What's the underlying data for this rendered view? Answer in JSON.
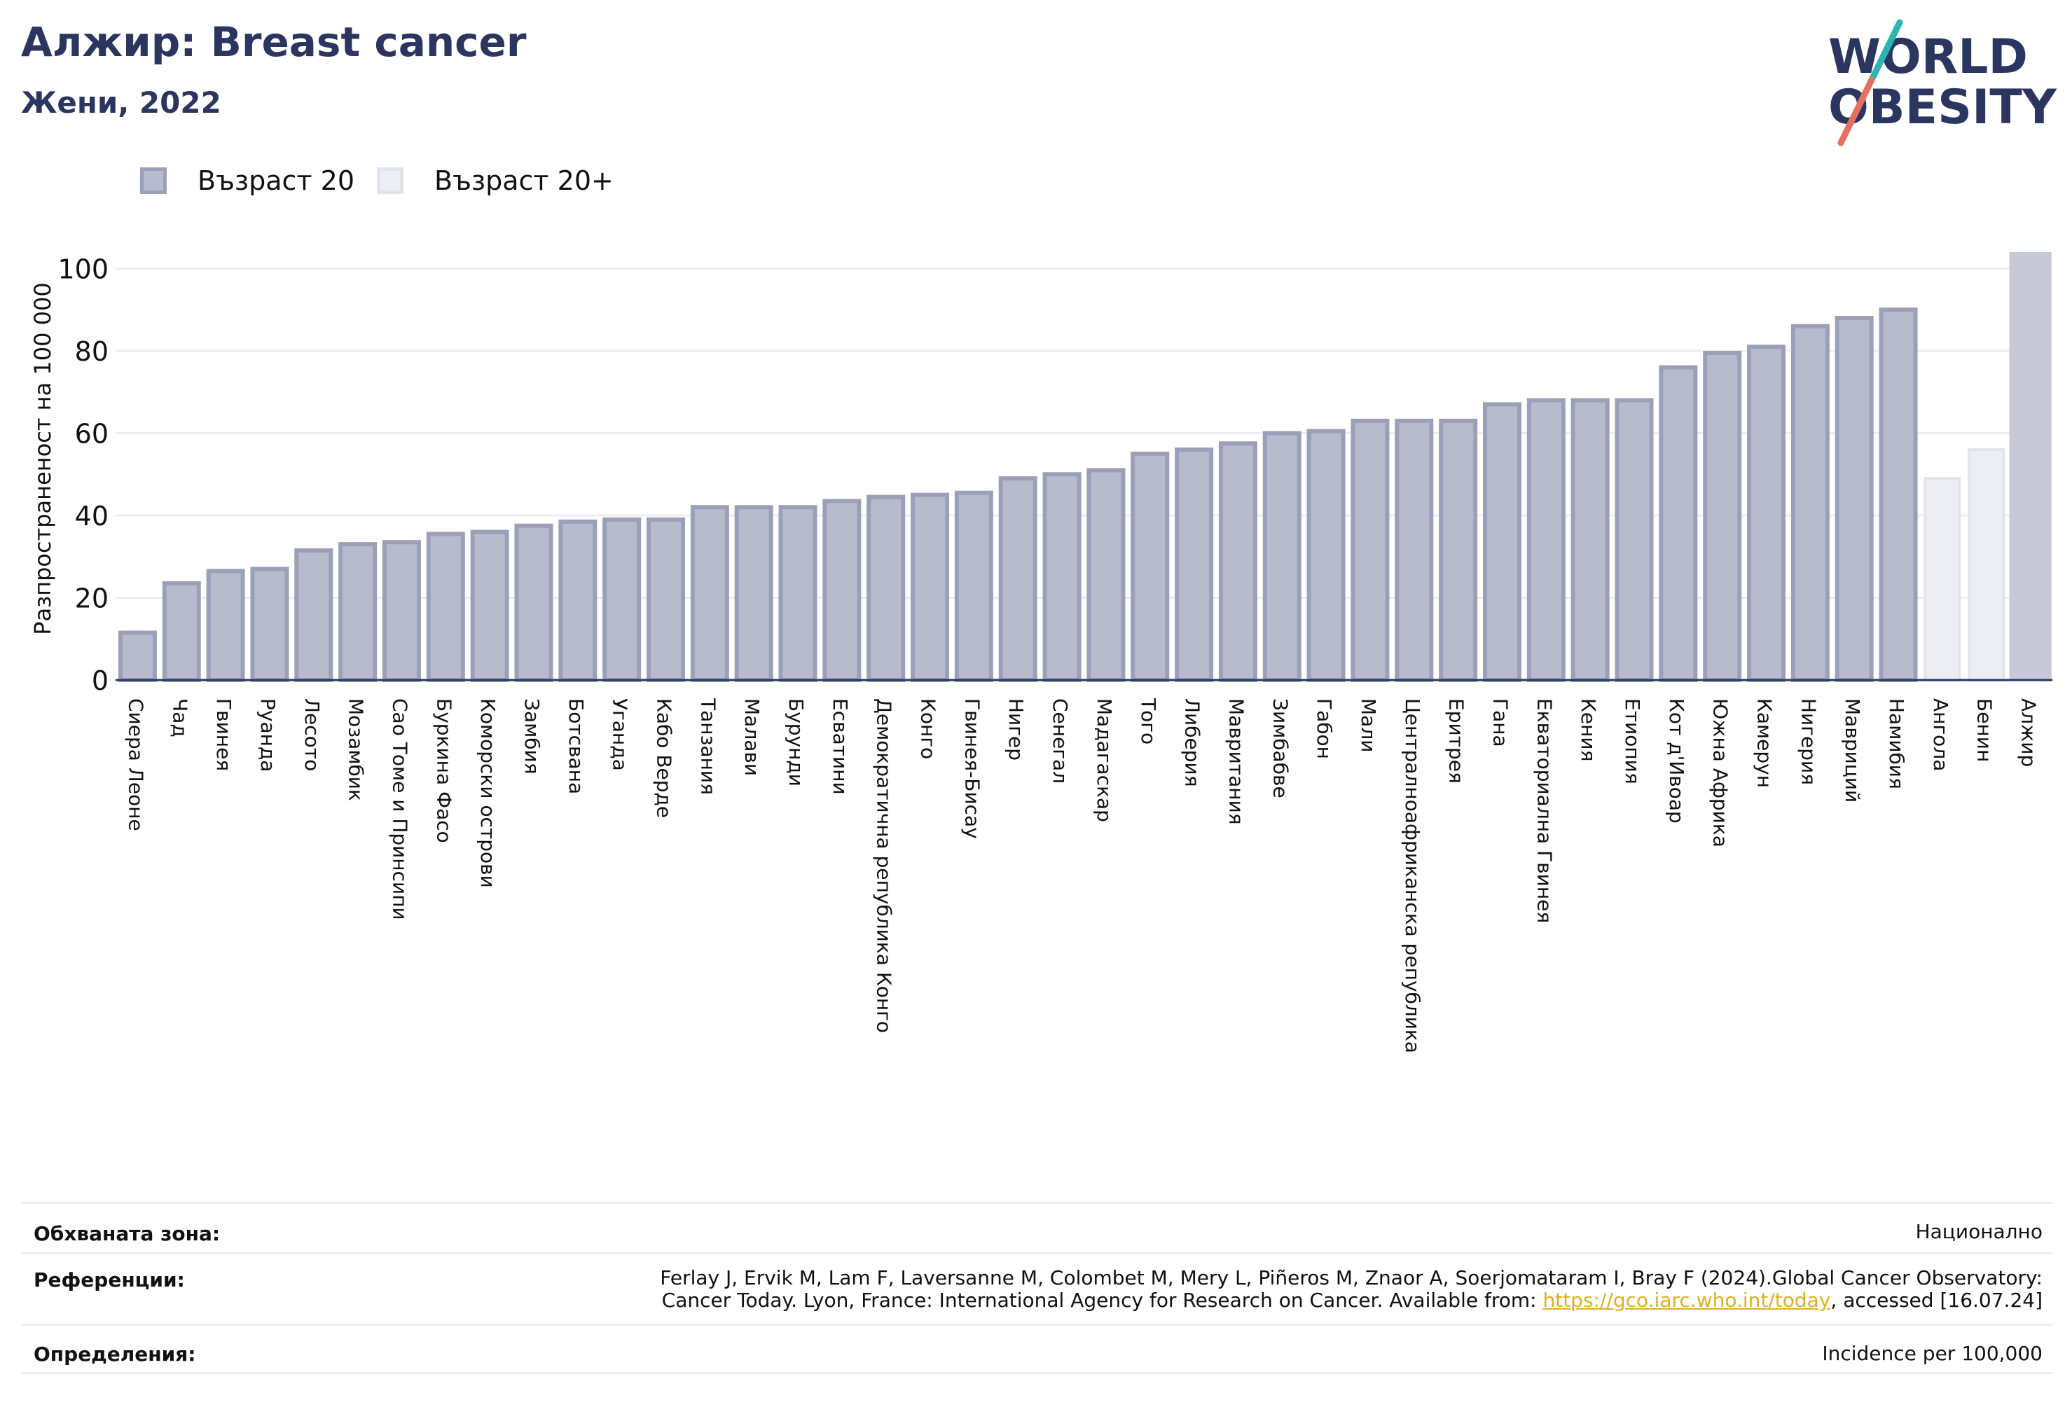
{
  "header": {
    "title": "Алжир: Breast cancer",
    "subtitle": "Жени, 2022"
  },
  "logo": {
    "line1": "WORLD",
    "line2": "OBESITY"
  },
  "legend": [
    {
      "label": "Възраст 20",
      "color": "#b7bbcb"
    },
    {
      "label": "Възраст 20+",
      "color": "#eceef3"
    }
  ],
  "chart_data": {
    "type": "bar",
    "ylabel": "Разпространеност  на 100 000",
    "ylim": [
      0,
      100
    ],
    "yticks": [
      0,
      20,
      40,
      60,
      80,
      100
    ],
    "grid": true,
    "legend_position": "top-left",
    "categories": [
      "Сиера Леоне",
      "Чад",
      "Гвинея",
      "Руанда",
      "Лесото",
      "Мозамбик",
      "Сао Томе и Принсипи",
      "Буркина Фасо",
      "Коморски острови",
      "Замбия",
      "Ботсвана",
      "Уганда",
      "Кабо Верде",
      "Танзания",
      "Малави",
      "Бурунди",
      "Есватини",
      "Демократична република Конго",
      "Конго",
      "Гвинея-Бисау",
      "Нигер",
      "Сенегал",
      "Мадагаскар",
      "Того",
      "Либерия",
      "Мавритания",
      "Зимбабве",
      "Габон",
      "Мали",
      "Централноафриканска република",
      "Еритрея",
      "Гана",
      "Екваториална Гвинея",
      "Кения",
      "Етиопия",
      "Кот д'Ивоар",
      "Южна Африка",
      "Камерун",
      "Нигерия",
      "Мавриций",
      "Намибия",
      "Ангола",
      "Бенин",
      "Алжир"
    ],
    "values": [
      11.5,
      23.5,
      26.5,
      27,
      31.5,
      33,
      33.5,
      35.5,
      36,
      37.5,
      38.5,
      39,
      39,
      42,
      42,
      42,
      43.5,
      44.5,
      45,
      45.5,
      49,
      50,
      51,
      55,
      56,
      57.5,
      60,
      60.5,
      63,
      63,
      63,
      67,
      68,
      68,
      68,
      76,
      79.5,
      81,
      86,
      88,
      90,
      49,
      56,
      104
    ],
    "series_index": [
      0,
      0,
      0,
      0,
      0,
      0,
      0,
      0,
      0,
      0,
      0,
      0,
      0,
      0,
      0,
      0,
      0,
      0,
      0,
      0,
      0,
      0,
      0,
      0,
      0,
      0,
      0,
      0,
      0,
      0,
      0,
      0,
      0,
      0,
      0,
      0,
      0,
      0,
      0,
      0,
      0,
      1,
      1,
      2
    ],
    "colors": {
      "series0_fill": "#b7bbcb",
      "series0_stroke": "#9aa0b8",
      "series1_fill": "#eceef3",
      "series1_stroke": "#e2e4ea",
      "highlight_fill": "#c8c9d6",
      "axis": "#2b3660",
      "grid": "#eceef3"
    }
  },
  "meta": {
    "area_label": "Обхваната зона:",
    "area_value": "Национално",
    "refs_label": "Референции:",
    "refs_line1": "Ferlay J, Ervik M, Lam F, Laversanne M, Colombet M, Mery L, Piñeros M, Znaor A, Soerjomataram I, Bray F (2024).Global Cancer Observatory:",
    "refs_line2_pre": "Cancer Today. Lyon, France: International Agency for Research on Cancer. Available from: ",
    "refs_link": "https://gco.iarc.who.int/today",
    "refs_line2_post": ", accessed [16.07.24]",
    "def_label": "Определения:",
    "def_value": "Incidence per 100,000"
  }
}
